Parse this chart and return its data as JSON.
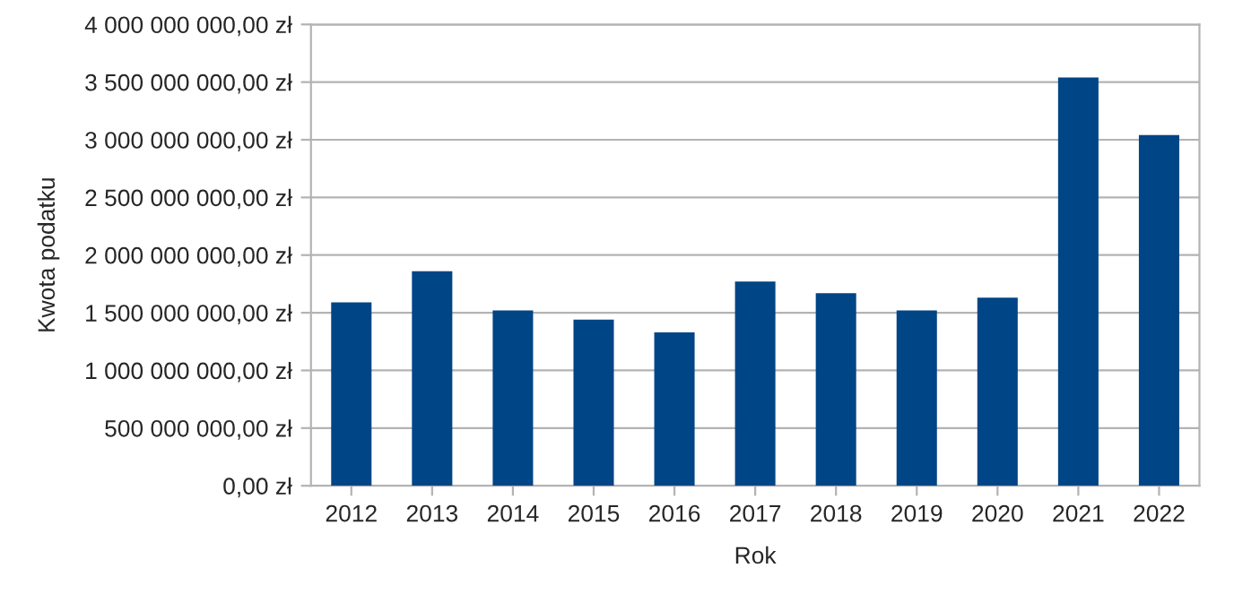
{
  "chart_data": {
    "type": "bar",
    "xlabel": "Rok",
    "ylabel": "Kwota podatku",
    "categories": [
      "2012",
      "2013",
      "2014",
      "2015",
      "2016",
      "2017",
      "2018",
      "2019",
      "2020",
      "2021",
      "2022"
    ],
    "values": [
      1590000000,
      1860000000,
      1520000000,
      1440000000,
      1330000000,
      1770000000,
      1670000000,
      1520000000,
      1630000000,
      3540000000,
      3040000000
    ],
    "color": "#004586",
    "ylim": [
      0,
      4000000000
    ],
    "yticks": [
      {
        "value": 0,
        "label": "0,00 zł"
      },
      {
        "value": 500000000,
        "label": "500 000 000,00 zł"
      },
      {
        "value": 1000000000,
        "label": "1 000 000 000,00 zł"
      },
      {
        "value": 1500000000,
        "label": "1 500 000 000,00 zł"
      },
      {
        "value": 2000000000,
        "label": "2 000 000 000,00 zł"
      },
      {
        "value": 2500000000,
        "label": "2 500 000 000,00 zł"
      },
      {
        "value": 3000000000,
        "label": "3 000 000 000,00 zł"
      },
      {
        "value": 3500000000,
        "label": "3 500 000 000,00 zł"
      },
      {
        "value": 4000000000,
        "label": "4 000 000 000,00 zł"
      }
    ],
    "grid": "y"
  }
}
